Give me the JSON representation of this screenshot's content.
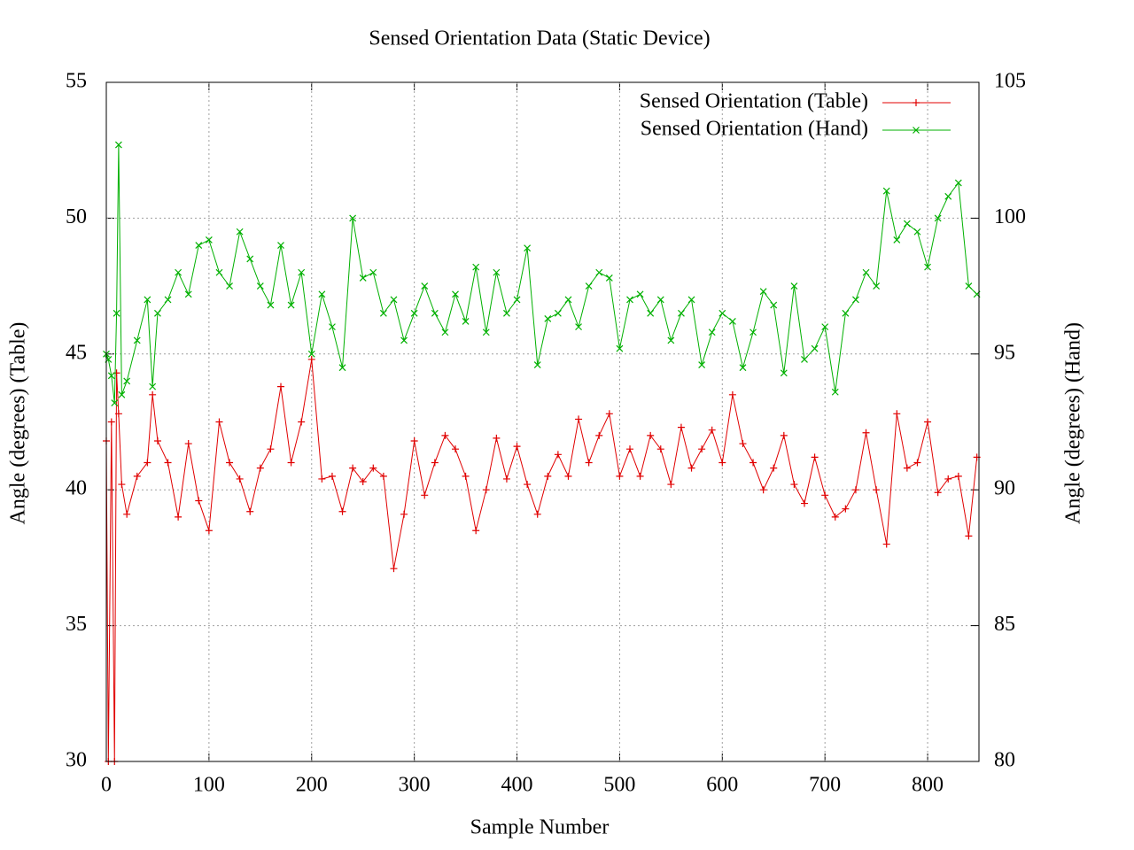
{
  "chart_data": {
    "type": "line",
    "title": "Sensed Orientation Data (Static Device)",
    "xlabel": "Sample Number",
    "ylabel": "Angle (degrees) (Table)",
    "y2label": "Angle (degrees) (Hand)",
    "x": [
      0,
      2,
      5,
      8,
      10,
      12,
      15,
      20,
      30,
      40,
      45,
      50,
      60,
      70,
      80,
      90,
      100,
      110,
      120,
      130,
      140,
      150,
      160,
      170,
      180,
      190,
      200,
      210,
      220,
      230,
      240,
      250,
      260,
      270,
      280,
      290,
      300,
      310,
      320,
      330,
      340,
      350,
      360,
      370,
      380,
      390,
      400,
      410,
      420,
      430,
      440,
      450,
      460,
      470,
      480,
      490,
      500,
      510,
      520,
      530,
      540,
      550,
      560,
      570,
      580,
      590,
      600,
      610,
      620,
      630,
      640,
      650,
      660,
      670,
      680,
      690,
      700,
      710,
      720,
      730,
      740,
      750,
      760,
      770,
      780,
      790,
      800,
      810,
      820,
      830,
      840,
      848
    ],
    "series": [
      {
        "name": "Sensed Orientation (Table)",
        "color": "#e00000",
        "marker": "plus",
        "values": [
          41.8,
          30,
          42.5,
          30,
          44.3,
          42.8,
          40.2,
          39.1,
          40.5,
          41.0,
          43.5,
          41.8,
          41.0,
          39.0,
          41.7,
          39.6,
          38.5,
          42.5,
          41.0,
          40.4,
          39.2,
          40.8,
          41.5,
          43.8,
          41.0,
          42.5,
          44.8,
          40.4,
          40.5,
          39.2,
          40.8,
          40.3,
          40.8,
          40.5,
          37.1,
          39.1,
          41.8,
          39.8,
          41.0,
          42.0,
          41.5,
          40.5,
          38.5,
          40.0,
          41.9,
          40.4,
          41.6,
          40.2,
          39.1,
          40.5,
          41.3,
          40.5,
          42.6,
          41.0,
          42.0,
          42.8,
          40.5,
          41.5,
          40.5,
          42.0,
          41.5,
          40.2,
          42.3,
          40.8,
          41.5,
          42.2,
          41.0,
          43.5,
          41.7,
          41.0,
          40.0,
          40.8,
          42.0,
          40.2,
          39.5,
          41.2,
          39.8,
          39.0,
          39.3,
          40.0,
          42.1,
          40.0,
          38.0,
          42.8,
          40.8,
          41.0,
          42.5,
          39.9,
          40.4,
          40.5,
          38.3,
          41.2
        ]
      },
      {
        "name": "Sensed Orientation (Hand)",
        "color": "#00b000",
        "marker": "cross",
        "axis": "y2",
        "values": [
          95.0,
          94.8,
          94.2,
          93.2,
          96.5,
          102.7,
          93.5,
          94.0,
          95.5,
          97.0,
          93.8,
          96.5,
          97.0,
          98.0,
          97.2,
          99.0,
          99.2,
          98.0,
          97.5,
          99.5,
          98.5,
          97.5,
          96.8,
          99.0,
          96.8,
          98.0,
          95.0,
          97.2,
          96.0,
          94.5,
          100.0,
          97.8,
          98.0,
          96.5,
          97.0,
          95.5,
          96.5,
          97.5,
          96.5,
          95.8,
          97.2,
          96.2,
          98.2,
          95.8,
          98.0,
          96.5,
          97.0,
          98.9,
          94.6,
          96.3,
          96.5,
          97.0,
          96.0,
          97.5,
          98.0,
          97.8,
          95.2,
          97.0,
          97.2,
          96.5,
          97.0,
          95.5,
          96.5,
          97.0,
          94.6,
          95.8,
          96.5,
          96.2,
          94.5,
          95.8,
          97.3,
          96.8,
          94.3,
          97.5,
          94.8,
          95.2,
          96.0,
          93.6,
          96.5,
          97.0,
          98.0,
          97.5,
          101.0,
          99.2,
          99.8,
          99.5,
          98.2,
          100.0,
          100.8,
          101.3,
          97.5,
          97.2
        ]
      }
    ],
    "xlim": [
      0,
      850
    ],
    "xticks": [
      0,
      100,
      200,
      300,
      400,
      500,
      600,
      700,
      800
    ],
    "ylim": [
      30,
      55
    ],
    "yticks": [
      30,
      35,
      40,
      45,
      50,
      55
    ],
    "y2lim": [
      80,
      105
    ],
    "y2ticks": [
      80,
      85,
      90,
      95,
      100,
      105
    ],
    "grid": true,
    "legend": "top-right"
  }
}
